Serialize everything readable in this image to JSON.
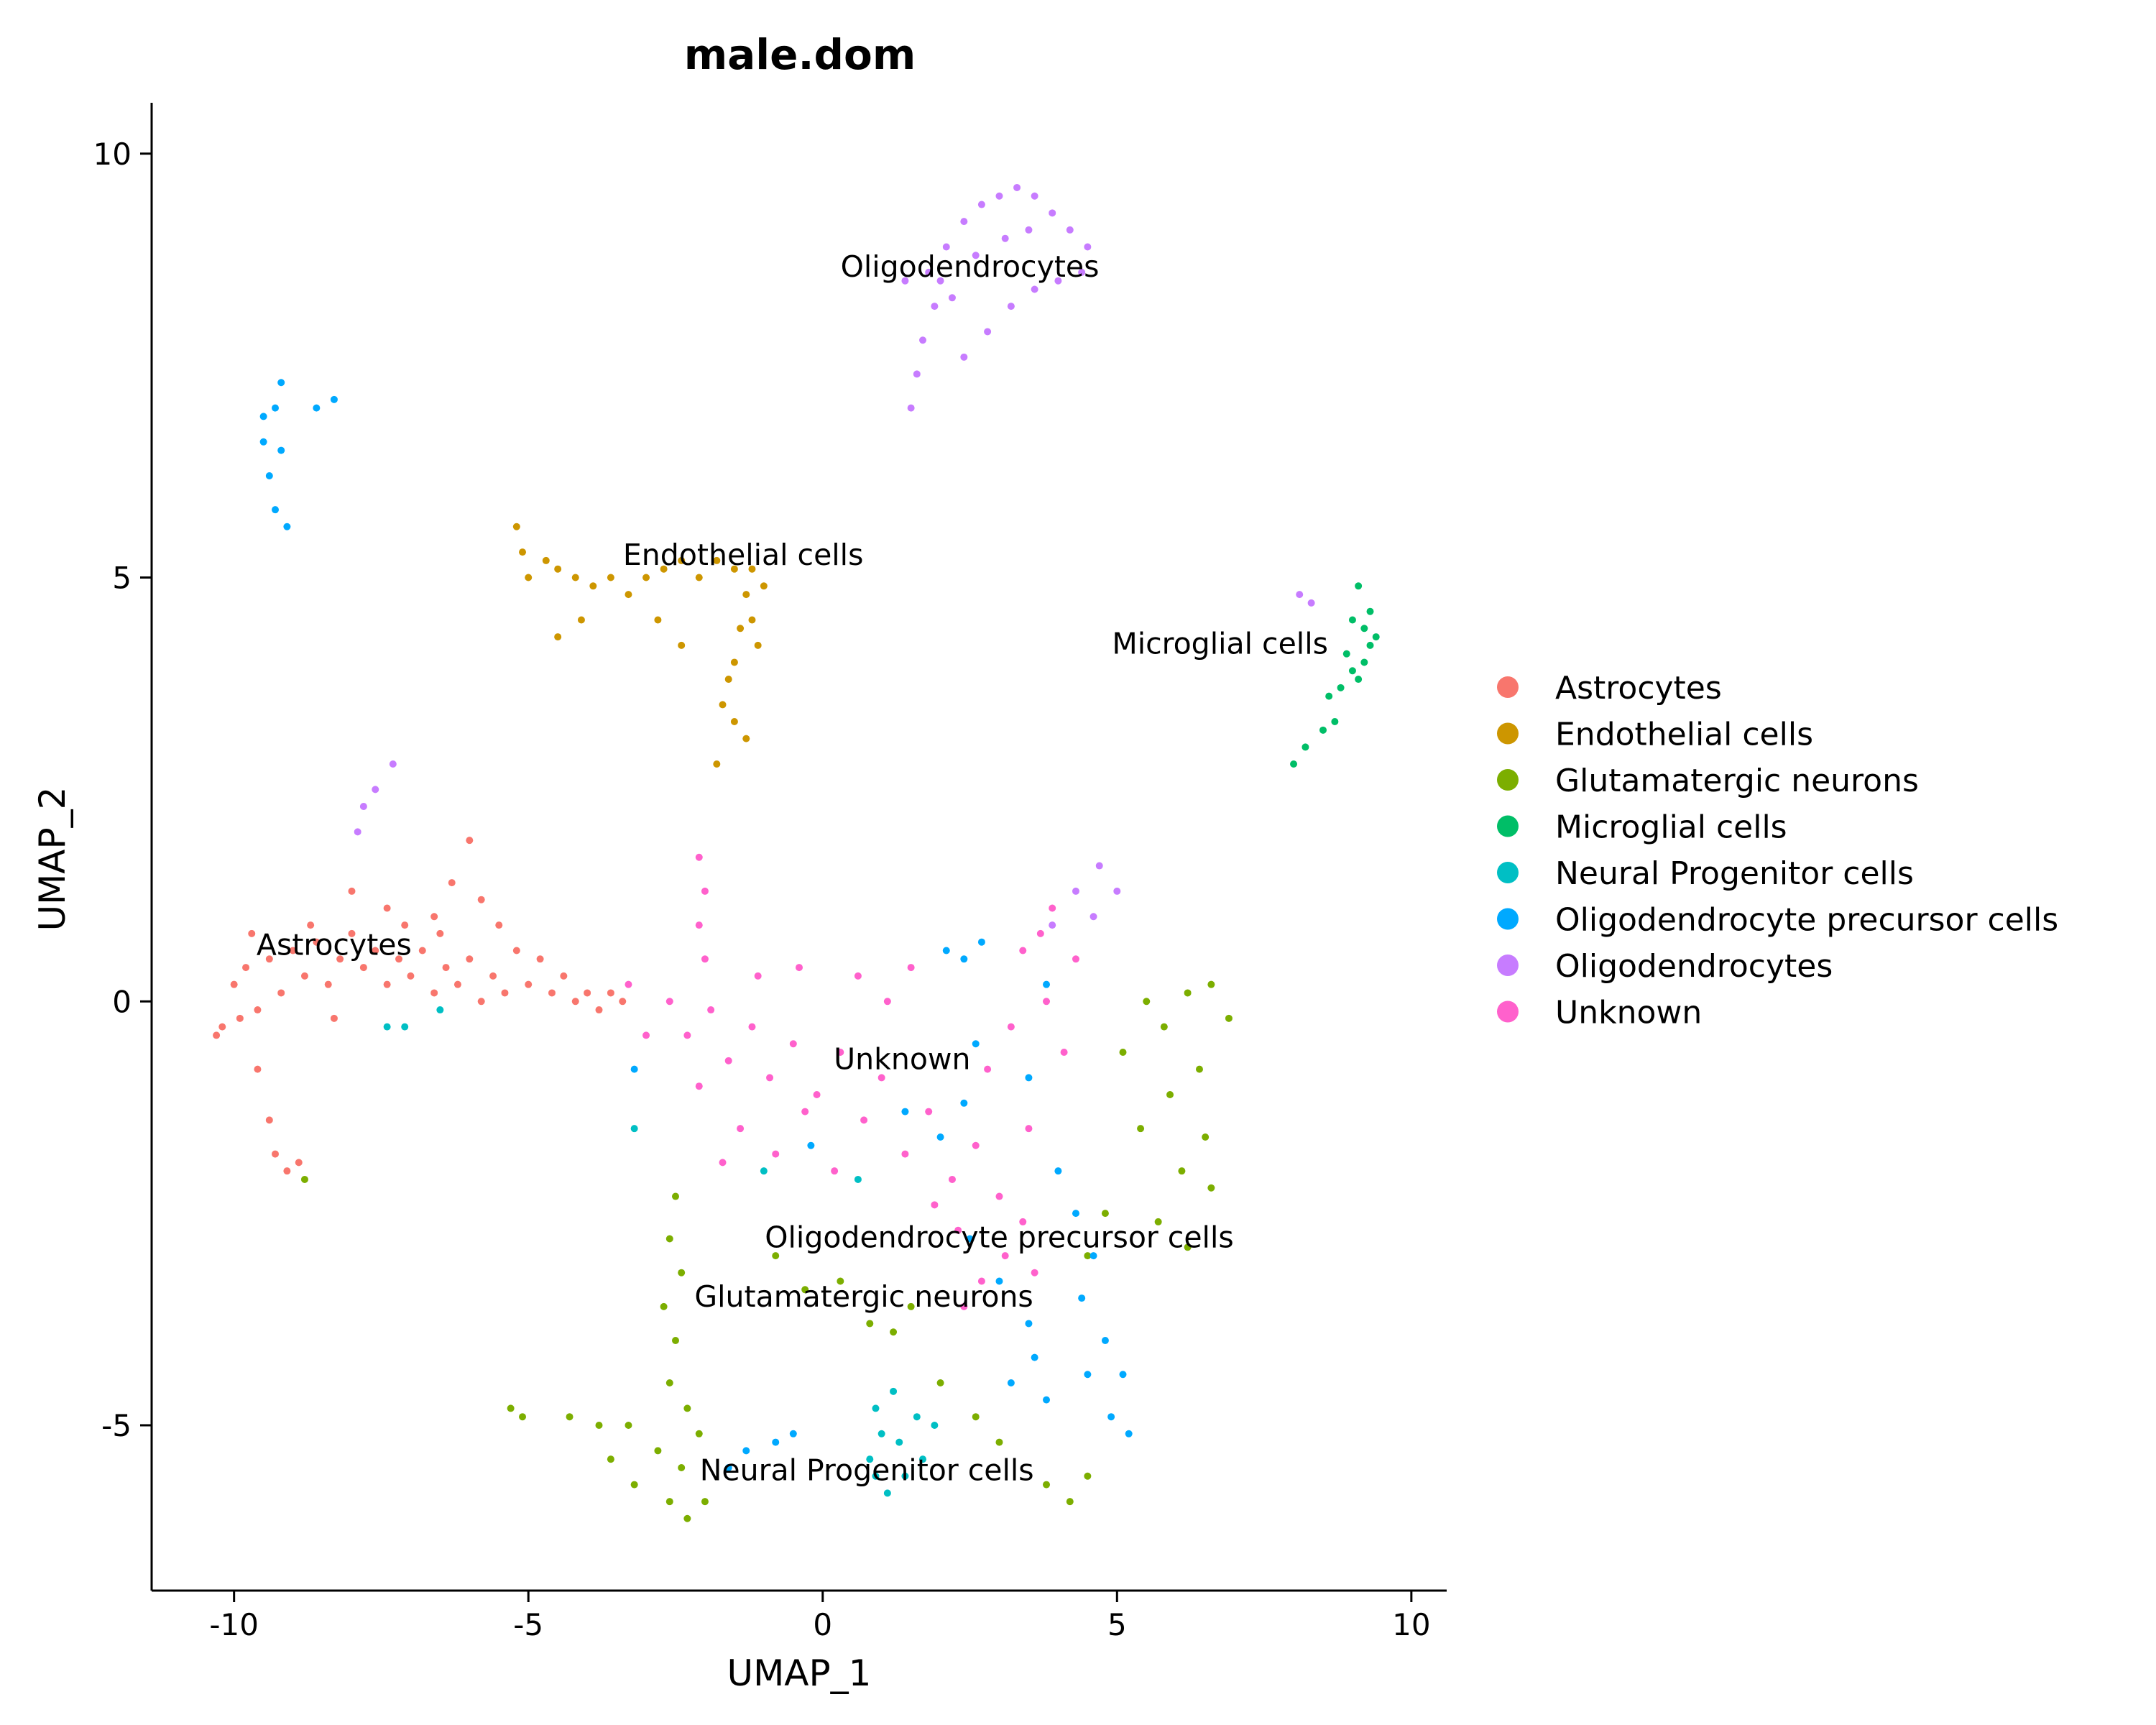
{
  "chart_data": {
    "type": "scatter",
    "title": "male.dom",
    "xlabel": "UMAP_1",
    "ylabel": "UMAP_2",
    "xlim": [
      -11.4,
      10.6
    ],
    "ylim": [
      -6.95,
      10.6
    ],
    "xticks": [
      -10,
      -5,
      0,
      5,
      10
    ],
    "xtick_labels": [
      "-10",
      "-5",
      "0",
      "5",
      "10"
    ],
    "yticks": [
      -5,
      0,
      5,
      10
    ],
    "ytick_labels": [
      "-5",
      "0",
      "5",
      "10"
    ],
    "grid": false,
    "legend_position": "right",
    "series": [
      {
        "name": "Astrocytes",
        "color": "#F8766D",
        "points": [
          [
            -10.2,
            -0.3
          ],
          [
            -10.0,
            0.2
          ],
          [
            -9.8,
            0.4
          ],
          [
            -9.6,
            -0.1
          ],
          [
            -9.4,
            0.5
          ],
          [
            -9.2,
            0.1
          ],
          [
            -9.0,
            0.6
          ],
          [
            -8.8,
            0.3
          ],
          [
            -8.6,
            0.7
          ],
          [
            -8.4,
            0.2
          ],
          [
            -8.2,
            0.5
          ],
          [
            -8.0,
            0.8
          ],
          [
            -7.8,
            0.4
          ],
          [
            -7.6,
            0.6
          ],
          [
            -7.4,
            0.2
          ],
          [
            -7.2,
            0.5
          ],
          [
            -7.0,
            0.3
          ],
          [
            -6.8,
            0.6
          ],
          [
            -6.6,
            0.1
          ],
          [
            -6.4,
            0.4
          ],
          [
            -6.2,
            0.2
          ],
          [
            -6.0,
            0.5
          ],
          [
            -5.8,
            0.0
          ],
          [
            -5.6,
            0.3
          ],
          [
            -5.4,
            0.1
          ],
          [
            -5.2,
            0.6
          ],
          [
            -5.0,
            0.2
          ],
          [
            -4.8,
            0.5
          ],
          [
            -4.6,
            0.1
          ],
          [
            -4.4,
            0.3
          ],
          [
            -4.2,
            0.0
          ],
          [
            -4.0,
            0.1
          ],
          [
            -3.8,
            -0.1
          ],
          [
            -3.6,
            0.1
          ],
          [
            -3.4,
            0.0
          ],
          [
            -6.0,
            1.9
          ],
          [
            -6.3,
            1.4
          ],
          [
            -5.8,
            1.2
          ],
          [
            -6.6,
            1.0
          ],
          [
            -7.4,
            1.1
          ],
          [
            -8.0,
            1.3
          ],
          [
            -9.6,
            -0.8
          ],
          [
            -9.4,
            -1.4
          ],
          [
            -9.3,
            -1.8
          ],
          [
            -9.1,
            -2.0
          ],
          [
            -8.9,
            -1.9
          ],
          [
            -9.7,
            0.8
          ],
          [
            -10.3,
            -0.4
          ],
          [
            -9.9,
            -0.2
          ],
          [
            -8.7,
            0.9
          ],
          [
            -8.3,
            -0.2
          ],
          [
            -7.1,
            0.9
          ],
          [
            -6.5,
            0.8
          ],
          [
            -5.5,
            0.9
          ]
        ]
      },
      {
        "name": "Endothelial cells",
        "color": "#CD9600",
        "points": [
          [
            -5.2,
            5.6
          ],
          [
            -5.1,
            5.3
          ],
          [
            -5.0,
            5.0
          ],
          [
            -4.7,
            5.2
          ],
          [
            -4.5,
            5.1
          ],
          [
            -4.2,
            5.0
          ],
          [
            -3.9,
            4.9
          ],
          [
            -3.6,
            5.0
          ],
          [
            -3.3,
            4.8
          ],
          [
            -3.0,
            5.0
          ],
          [
            -2.7,
            5.1
          ],
          [
            -2.4,
            5.2
          ],
          [
            -2.1,
            5.0
          ],
          [
            -1.8,
            5.2
          ],
          [
            -1.5,
            5.1
          ],
          [
            -1.3,
            4.8
          ],
          [
            -1.2,
            4.5
          ],
          [
            -1.4,
            4.4
          ],
          [
            -1.1,
            4.2
          ],
          [
            -1.5,
            4.0
          ],
          [
            -1.6,
            3.8
          ],
          [
            -1.7,
            3.5
          ],
          [
            -1.5,
            3.3
          ],
          [
            -1.8,
            2.8
          ],
          [
            -4.5,
            4.3
          ],
          [
            -4.1,
            4.5
          ],
          [
            -2.8,
            4.5
          ],
          [
            -2.4,
            4.2
          ],
          [
            -1.0,
            4.9
          ],
          [
            -1.2,
            5.1
          ],
          [
            -1.3,
            3.1
          ]
        ]
      },
      {
        "name": "Glutamatergic neurons",
        "color": "#7CAE00",
        "points": [
          [
            -2.5,
            -2.3
          ],
          [
            -2.6,
            -2.8
          ],
          [
            -2.4,
            -3.2
          ],
          [
            -2.7,
            -3.6
          ],
          [
            -2.5,
            -4.0
          ],
          [
            -2.6,
            -4.5
          ],
          [
            -2.3,
            -4.8
          ],
          [
            -2.1,
            -5.1
          ],
          [
            -2.4,
            -5.5
          ],
          [
            -2.6,
            -5.9
          ],
          [
            -2.3,
            -6.1
          ],
          [
            -2.0,
            -5.9
          ],
          [
            -2.8,
            -5.3
          ],
          [
            -3.3,
            -5.0
          ],
          [
            -3.8,
            -5.0
          ],
          [
            -4.3,
            -4.9
          ],
          [
            -5.3,
            -4.8
          ],
          [
            -5.1,
            -4.9
          ],
          [
            -3.6,
            -5.4
          ],
          [
            -3.2,
            -5.7
          ],
          [
            -0.8,
            -3.0
          ],
          [
            -0.3,
            -3.4
          ],
          [
            0.3,
            -3.3
          ],
          [
            0.8,
            -3.8
          ],
          [
            1.2,
            -3.9
          ],
          [
            1.5,
            -3.6
          ],
          [
            2.0,
            -4.5
          ],
          [
            2.6,
            -4.9
          ],
          [
            3.0,
            -5.2
          ],
          [
            3.8,
            -5.7
          ],
          [
            4.2,
            -5.9
          ],
          [
            4.5,
            -5.6
          ],
          [
            5.5,
            0.0
          ],
          [
            5.8,
            -0.3
          ],
          [
            6.2,
            0.1
          ],
          [
            6.6,
            0.2
          ],
          [
            6.9,
            -0.2
          ],
          [
            6.4,
            -0.8
          ],
          [
            5.9,
            -1.1
          ],
          [
            6.5,
            -1.6
          ],
          [
            6.1,
            -2.0
          ],
          [
            6.6,
            -2.2
          ],
          [
            5.7,
            -2.6
          ],
          [
            6.2,
            -2.9
          ],
          [
            5.4,
            -1.5
          ],
          [
            5.1,
            -0.6
          ],
          [
            4.8,
            -2.5
          ],
          [
            4.5,
            -3.0
          ],
          [
            -8.8,
            -2.1
          ]
        ]
      },
      {
        "name": "Microglial cells",
        "color": "#00BE67",
        "points": [
          [
            9.1,
            4.9
          ],
          [
            9.3,
            4.6
          ],
          [
            9.4,
            4.3
          ],
          [
            9.2,
            4.0
          ],
          [
            9.0,
            3.9
          ],
          [
            8.8,
            3.7
          ],
          [
            8.6,
            3.6
          ],
          [
            8.7,
            3.3
          ],
          [
            8.5,
            3.2
          ],
          [
            9.2,
            4.4
          ],
          [
            9.3,
            4.2
          ],
          [
            9.0,
            4.5
          ],
          [
            8.9,
            4.1
          ],
          [
            9.1,
            3.8
          ],
          [
            8.0,
            2.8
          ],
          [
            8.2,
            3.0
          ]
        ]
      },
      {
        "name": "Neural Progenitor cells",
        "color": "#00BFC4",
        "points": [
          [
            0.8,
            -5.4
          ],
          [
            0.9,
            -5.6
          ],
          [
            1.1,
            -5.8
          ],
          [
            1.0,
            -5.1
          ],
          [
            1.3,
            -5.2
          ],
          [
            1.6,
            -4.9
          ],
          [
            1.9,
            -5.0
          ],
          [
            1.2,
            -4.6
          ],
          [
            0.9,
            -4.8
          ],
          [
            1.4,
            -5.6
          ],
          [
            1.7,
            -5.4
          ],
          [
            -7.4,
            -0.3
          ],
          [
            -7.1,
            -0.3
          ],
          [
            -6.5,
            -0.1
          ],
          [
            -3.2,
            -1.5
          ],
          [
            -1.0,
            -2.0
          ],
          [
            0.6,
            -2.1
          ]
        ]
      },
      {
        "name": "Oligodendrocyte precursor cells",
        "color": "#00A9FF",
        "points": [
          [
            -9.5,
            6.6
          ],
          [
            -9.3,
            7.0
          ],
          [
            -9.2,
            6.5
          ],
          [
            -9.4,
            6.2
          ],
          [
            -9.3,
            5.8
          ],
          [
            -9.1,
            5.6
          ],
          [
            -9.2,
            7.3
          ],
          [
            -9.5,
            6.9
          ],
          [
            -8.6,
            7.0
          ],
          [
            -8.3,
            7.1
          ],
          [
            4.0,
            -2.0
          ],
          [
            4.3,
            -2.5
          ],
          [
            4.6,
            -3.0
          ],
          [
            4.4,
            -3.5
          ],
          [
            4.8,
            -4.0
          ],
          [
            5.1,
            -4.4
          ],
          [
            4.9,
            -4.9
          ],
          [
            5.2,
            -5.1
          ],
          [
            3.6,
            -4.2
          ],
          [
            3.2,
            -4.5
          ],
          [
            3.8,
            -4.7
          ],
          [
            4.5,
            -4.4
          ],
          [
            2.5,
            -2.8
          ],
          [
            3.0,
            -3.3
          ],
          [
            3.5,
            -3.8
          ],
          [
            2.7,
            0.7
          ],
          [
            2.4,
            0.5
          ],
          [
            2.1,
            0.6
          ],
          [
            2.6,
            -0.5
          ],
          [
            2.4,
            -1.2
          ],
          [
            2.0,
            -1.6
          ],
          [
            3.8,
            0.2
          ],
          [
            3.5,
            -0.9
          ],
          [
            1.4,
            -1.3
          ],
          [
            -1.6,
            -5.5
          ],
          [
            -1.3,
            -5.3
          ],
          [
            -0.8,
            -5.2
          ],
          [
            -0.5,
            -5.1
          ],
          [
            -3.2,
            -0.8
          ],
          [
            -0.2,
            -1.7
          ]
        ]
      },
      {
        "name": "Oligodendrocytes",
        "color": "#C77CFF",
        "points": [
          [
            1.6,
            7.4
          ],
          [
            1.5,
            7.0
          ],
          [
            1.7,
            7.8
          ],
          [
            1.9,
            8.2
          ],
          [
            1.8,
            8.6
          ],
          [
            2.1,
            8.9
          ],
          [
            2.4,
            9.2
          ],
          [
            2.7,
            9.4
          ],
          [
            3.0,
            9.5
          ],
          [
            3.3,
            9.6
          ],
          [
            3.6,
            9.5
          ],
          [
            3.9,
            9.3
          ],
          [
            4.2,
            9.1
          ],
          [
            4.5,
            8.9
          ],
          [
            4.4,
            8.6
          ],
          [
            4.0,
            8.5
          ],
          [
            3.6,
            8.4
          ],
          [
            3.2,
            8.2
          ],
          [
            2.8,
            7.9
          ],
          [
            2.4,
            7.6
          ],
          [
            2.2,
            8.3
          ],
          [
            2.6,
            8.8
          ],
          [
            3.1,
            9.0
          ],
          [
            3.5,
            9.1
          ],
          [
            2.0,
            8.5
          ],
          [
            1.4,
            8.5
          ],
          [
            -7.3,
            2.8
          ],
          [
            -7.6,
            2.5
          ],
          [
            -7.8,
            2.3
          ],
          [
            -7.9,
            2.0
          ],
          [
            3.9,
            0.9
          ],
          [
            4.3,
            1.3
          ],
          [
            4.7,
            1.6
          ],
          [
            5.0,
            1.3
          ],
          [
            4.6,
            1.0
          ],
          [
            8.1,
            4.8
          ],
          [
            8.3,
            4.7
          ]
        ]
      },
      {
        "name": "Unknown",
        "color": "#FF61CC",
        "points": [
          [
            -2.6,
            0.0
          ],
          [
            -2.3,
            -0.4
          ],
          [
            -1.9,
            -0.1
          ],
          [
            -1.6,
            -0.7
          ],
          [
            -1.2,
            -0.3
          ],
          [
            -0.9,
            -0.9
          ],
          [
            -0.5,
            -0.5
          ],
          [
            -0.1,
            -1.1
          ],
          [
            0.3,
            -0.6
          ],
          [
            0.7,
            -1.4
          ],
          [
            1.0,
            -0.9
          ],
          [
            1.4,
            -1.8
          ],
          [
            1.8,
            -1.3
          ],
          [
            2.2,
            -2.1
          ],
          [
            2.6,
            -1.7
          ],
          [
            3.0,
            -2.3
          ],
          [
            3.4,
            -2.6
          ],
          [
            3.1,
            -3.0
          ],
          [
            2.7,
            -3.3
          ],
          [
            2.3,
            -2.7
          ],
          [
            1.9,
            -2.4
          ],
          [
            -1.4,
            -1.5
          ],
          [
            -0.8,
            -1.8
          ],
          [
            -0.3,
            -1.3
          ],
          [
            0.2,
            -2.0
          ],
          [
            0.6,
            0.3
          ],
          [
            1.1,
            0.0
          ],
          [
            1.5,
            0.4
          ],
          [
            -0.4,
            0.4
          ],
          [
            -1.1,
            0.3
          ],
          [
            -2.0,
            0.5
          ],
          [
            3.8,
            0.0
          ],
          [
            4.1,
            -0.6
          ],
          [
            3.7,
            0.8
          ],
          [
            4.3,
            0.5
          ],
          [
            3.9,
            1.1
          ],
          [
            3.4,
            0.6
          ],
          [
            3.2,
            -0.3
          ],
          [
            -2.1,
            -1.0
          ],
          [
            -1.7,
            -1.9
          ],
          [
            -2.1,
            1.7
          ],
          [
            -2.0,
            1.3
          ],
          [
            -2.1,
            0.9
          ],
          [
            -3.3,
            0.2
          ],
          [
            -3.0,
            -0.4
          ],
          [
            2.8,
            -0.8
          ],
          [
            3.5,
            -1.5
          ],
          [
            2.4,
            -3.6
          ],
          [
            3.6,
            -3.2
          ]
        ]
      }
    ],
    "cluster_labels": [
      {
        "text": "Oligodendrocytes",
        "x": 2.5,
        "y": 8.55
      },
      {
        "text": "Endothelial cells",
        "x": -1.35,
        "y": 5.15
      },
      {
        "text": "Microglial cells",
        "x": 6.75,
        "y": 4.1
      },
      {
        "text": "Astrocytes",
        "x": -8.3,
        "y": 0.55
      },
      {
        "text": "Unknown",
        "x": 1.35,
        "y": -0.8
      },
      {
        "text": "Oligodendrocyte precursor cells",
        "x": 3.0,
        "y": -2.9
      },
      {
        "text": "Glutamatergic neurons",
        "x": 0.7,
        "y": -3.6
      },
      {
        "text": "Neural Progenitor cells",
        "x": 0.75,
        "y": -5.65
      }
    ]
  }
}
